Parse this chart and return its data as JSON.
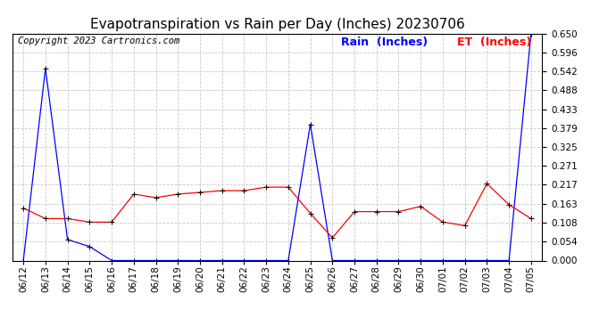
{
  "title": "Evapotranspiration vs Rain per Day (Inches) 20230706",
  "copyright": "Copyright 2023 Cartronics.com",
  "legend_rain": "Rain  (Inches)",
  "legend_et": "ET  (Inches)",
  "dates": [
    "06/12",
    "06/13",
    "06/14",
    "06/15",
    "06/16",
    "06/17",
    "06/18",
    "06/19",
    "06/20",
    "06/21",
    "06/22",
    "06/23",
    "06/24",
    "06/25",
    "06/26",
    "06/27",
    "06/28",
    "06/29",
    "06/30",
    "07/01",
    "07/02",
    "07/03",
    "07/04",
    "07/05"
  ],
  "rain": [
    0.0,
    0.55,
    0.06,
    0.04,
    0.0,
    0.0,
    0.0,
    0.0,
    0.0,
    0.0,
    0.0,
    0.0,
    0.0,
    0.39,
    0.0,
    0.0,
    0.0,
    0.0,
    0.0,
    0.0,
    0.0,
    0.0,
    0.0,
    0.65
  ],
  "et": [
    0.15,
    0.12,
    0.12,
    0.11,
    0.11,
    0.19,
    0.18,
    0.19,
    0.195,
    0.2,
    0.2,
    0.21,
    0.21,
    0.135,
    0.065,
    0.14,
    0.14,
    0.14,
    0.155,
    0.11,
    0.1,
    0.22,
    0.16,
    0.12
  ],
  "ylim": [
    0.0,
    0.65
  ],
  "yticks": [
    0.0,
    0.054,
    0.108,
    0.163,
    0.217,
    0.271,
    0.325,
    0.379,
    0.433,
    0.488,
    0.542,
    0.596,
    0.65
  ],
  "rain_color": "#0000ff",
  "et_color": "#ff0000",
  "grid_color": "#c8c8c8",
  "bg_color": "#ffffff",
  "title_fontsize": 11,
  "copyright_fontsize": 7.5,
  "legend_fontsize": 9,
  "tick_fontsize": 7.5
}
